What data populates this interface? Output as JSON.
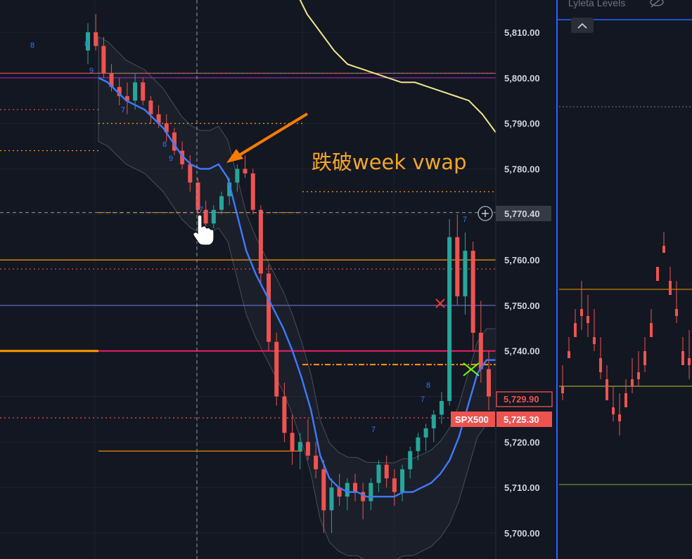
{
  "chart_data": {
    "type": "candlestick",
    "title": "",
    "ylabel": "",
    "ylim": [
      5695,
      5815
    ],
    "y_ticks": [
      5810,
      5800,
      5790,
      5780,
      5770,
      5760,
      5750,
      5740,
      5730,
      5720,
      5710,
      5700
    ],
    "y_tick_labels": [
      "5,810.00",
      "5,800.00",
      "5,790.00",
      "5,780.00",
      "5,770.00",
      "5,760.00",
      "5,750.00",
      "5,740.00",
      "5,730.00",
      "5,720.00",
      "5,710.00",
      "5,700.00"
    ],
    "grid": true,
    "crosshair": {
      "price": 5770.4,
      "label": "5,770.40"
    },
    "last_price": {
      "value": 5729.9,
      "label": "5,729.90"
    },
    "symbol_price": {
      "symbol": "SPX500",
      "value": 5725.3,
      "label": "5,725.30"
    },
    "annotation": {
      "text": "跌破week vwap",
      "color": "#f5a623"
    },
    "levels": [
      {
        "price": 5801,
        "color": "#ef5350",
        "style": "solid"
      },
      {
        "price": 5800,
        "color": "#9c27b0",
        "style": "solid"
      },
      {
        "price": 5801,
        "color": "#26a69a",
        "style": "dotted"
      },
      {
        "price": 5793,
        "color": "#ef5350",
        "style": "dotted"
      },
      {
        "price": 5790,
        "color": "#ff9800",
        "style": "dotted"
      },
      {
        "price": 5784,
        "color": "#ff9800",
        "style": "dotted"
      },
      {
        "price": 5775,
        "color": "#ff9800",
        "style": "dotted"
      },
      {
        "price": 5770.4,
        "color": "#ff9800",
        "style": "dashed"
      },
      {
        "price": 5760,
        "color": "#ff9800",
        "style": "solid"
      },
      {
        "price": 5758,
        "color": "#ef5350",
        "style": "dotted"
      },
      {
        "price": 5750,
        "color": "#5c6bc0",
        "style": "solid"
      },
      {
        "price": 5740,
        "color": "#e91e63",
        "style": "solid"
      },
      {
        "price": 5737,
        "color": "#ff9800",
        "style": "dashdot"
      },
      {
        "price": 5725.3,
        "color": "#ef5350",
        "style": "dotted"
      },
      {
        "price": 5718,
        "color": "#ff9800",
        "style": "solid"
      }
    ],
    "vwap_series": [
      5800,
      5799,
      5797,
      5795,
      5794,
      5793,
      5791,
      5789,
      5786,
      5783,
      5781,
      5780,
      5780,
      5781,
      5778,
      5770,
      5762,
      5757,
      5753,
      5749,
      5745,
      5740,
      5734,
      5727,
      5717,
      5712,
      5710,
      5709,
      5709,
      5708,
      5708,
      5708,
      5708,
      5709,
      5709,
      5710,
      5711,
      5713,
      5716,
      5721,
      5728,
      5735,
      5738,
      5738
    ],
    "weekly_vwap_series": [
      5830,
      5828,
      5826,
      5820,
      5814,
      5810,
      5806,
      5803,
      5802,
      5801,
      5800,
      5799,
      5799,
      5798,
      5797,
      5796,
      5795,
      5792,
      5788
    ],
    "seq_labels": [
      {
        "text": "8",
        "color": "#2979ff"
      },
      {
        "text": "8",
        "color": "#2979ff"
      },
      {
        "text": "9",
        "color": "#2979ff"
      },
      {
        "text": "7",
        "color": "#2979ff"
      },
      {
        "text": "8",
        "color": "#2979ff"
      },
      {
        "text": "9",
        "color": "#2979ff"
      },
      {
        "text": "7",
        "color": "#2979ff"
      },
      {
        "text": "7",
        "color": "#2979ff"
      },
      {
        "text": "8",
        "color": "#2979ff"
      },
      {
        "text": "7",
        "color": "#2979ff"
      },
      {
        "text": "7",
        "color": "#2979ff"
      }
    ],
    "candles": [
      [
        5806,
        5812,
        5803,
        5810
      ],
      [
        5810,
        5814,
        5806,
        5807
      ],
      [
        5807,
        5809,
        5800,
        5801
      ],
      [
        5801,
        5803,
        5797,
        5798
      ],
      [
        5798,
        5800,
        5794,
        5796
      ],
      [
        5796,
        5799,
        5792,
        5795
      ],
      [
        5795,
        5801,
        5793,
        5799
      ],
      [
        5799,
        5800,
        5794,
        5795
      ],
      [
        5795,
        5796,
        5790,
        5792
      ],
      [
        5792,
        5794,
        5789,
        5790
      ],
      [
        5790,
        5792,
        5786,
        5788
      ],
      [
        5788,
        5789,
        5783,
        5784
      ],
      [
        5784,
        5786,
        5780,
        5781
      ],
      [
        5781,
        5783,
        5775,
        5777
      ],
      [
        5777,
        5778,
        5770,
        5771
      ],
      [
        5771,
        5773,
        5766,
        5768
      ],
      [
        5768,
        5772,
        5767,
        5771
      ],
      [
        5771,
        5775,
        5770,
        5774
      ],
      [
        5774,
        5778,
        5772,
        5777
      ],
      [
        5777,
        5781,
        5775,
        5780
      ],
      [
        5780,
        5783,
        5778,
        5779
      ],
      [
        5779,
        5780,
        5770,
        5771
      ],
      [
        5771,
        5772,
        5755,
        5757
      ],
      [
        5757,
        5759,
        5740,
        5742
      ],
      [
        5742,
        5744,
        5728,
        5730
      ],
      [
        5730,
        5733,
        5720,
        5722
      ],
      [
        5722,
        5726,
        5715,
        5718
      ],
      [
        5718,
        5722,
        5714,
        5720
      ],
      [
        5720,
        5725,
        5716,
        5717
      ],
      [
        5717,
        5720,
        5712,
        5714
      ],
      [
        5714,
        5716,
        5700,
        5705
      ],
      [
        5705,
        5712,
        5700,
        5710
      ],
      [
        5710,
        5713,
        5706,
        5708
      ],
      [
        5708,
        5712,
        5705,
        5711
      ],
      [
        5711,
        5713,
        5707,
        5709
      ],
      [
        5709,
        5711,
        5703,
        5707
      ],
      [
        5707,
        5712,
        5705,
        5711
      ],
      [
        5711,
        5716,
        5709,
        5715
      ],
      [
        5715,
        5717,
        5710,
        5712
      ],
      [
        5712,
        5714,
        5706,
        5709
      ],
      [
        5709,
        5715,
        5707,
        5714
      ],
      [
        5714,
        5719,
        5712,
        5718
      ],
      [
        5718,
        5722,
        5716,
        5721
      ],
      [
        5721,
        5724,
        5718,
        5723
      ],
      [
        5723,
        5727,
        5720,
        5726
      ],
      [
        5726,
        5731,
        5724,
        5729
      ],
      [
        5729,
        5769,
        5728,
        5765
      ],
      [
        5765,
        5770,
        5750,
        5752
      ],
      [
        5752,
        5766,
        5748,
        5762
      ],
      [
        5762,
        5764,
        5740,
        5744
      ],
      [
        5744,
        5751,
        5733,
        5736
      ],
      [
        5736,
        5740,
        5727,
        5730
      ]
    ]
  },
  "right_panel": {
    "title": "Lyleta Levels",
    "eye_icon": "eye-slash-icon",
    "collapse_icon": "chevron-up-icon",
    "border_color": "#2962ff"
  },
  "crosshair_icon": "plus-circle-icon",
  "cursor_icon": "hand-pointer-icon"
}
